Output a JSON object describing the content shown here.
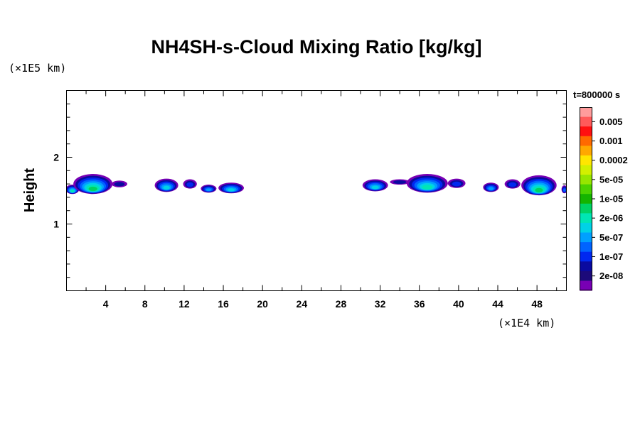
{
  "chart_data": {
    "type": "heatmap",
    "title": "NH4SH-s-Cloud Mixing Ratio [kg/kg]",
    "xlabel": "",
    "ylabel": "Height",
    "x_unit": "(×1E4 km)",
    "y_unit": "(×1E5 km)",
    "time_label": "t=800000 s",
    "xlim": [
      0,
      51
    ],
    "ylim": [
      0,
      3
    ],
    "x_ticks": [
      4,
      8,
      12,
      16,
      20,
      24,
      28,
      32,
      36,
      40,
      44,
      48
    ],
    "y_ticks": [
      1,
      2
    ],
    "colorbar": {
      "levels": [
        "0.005",
        "0.001",
        "0.0002",
        "5e-05",
        "1e-05",
        "2e-06",
        "5e-07",
        "1e-07",
        "2e-08"
      ],
      "colors": [
        "#ff9c9c",
        "#ff5a5a",
        "#ff1010",
        "#ff6a00",
        "#ffa800",
        "#ffe600",
        "#d2f000",
        "#96e600",
        "#4bd200",
        "#14b400",
        "#00d264",
        "#00e6b4",
        "#00d2e6",
        "#00a0ff",
        "#0064ff",
        "#0028f0",
        "#0a0aa0",
        "#1c0a7a",
        "#7800b4"
      ]
    },
    "cloud_patches": [
      {
        "x": 0.6,
        "y": 1.52,
        "w": 1.4,
        "h": 0.14,
        "peak": 7
      },
      {
        "x": 2.7,
        "y": 1.6,
        "w": 4.0,
        "h": 0.3,
        "peak": 8
      },
      {
        "x": 5.4,
        "y": 1.6,
        "w": 1.6,
        "h": 0.1,
        "peak": 2
      },
      {
        "x": 10.2,
        "y": 1.58,
        "w": 2.4,
        "h": 0.2,
        "peak": 6
      },
      {
        "x": 12.6,
        "y": 1.6,
        "w": 1.4,
        "h": 0.14,
        "peak": 3
      },
      {
        "x": 14.5,
        "y": 1.53,
        "w": 1.6,
        "h": 0.12,
        "peak": 5
      },
      {
        "x": 16.8,
        "y": 1.54,
        "w": 2.6,
        "h": 0.16,
        "peak": 6
      },
      {
        "x": 31.5,
        "y": 1.58,
        "w": 2.6,
        "h": 0.18,
        "peak": 6
      },
      {
        "x": 34.0,
        "y": 1.63,
        "w": 2.0,
        "h": 0.08,
        "peak": 2
      },
      {
        "x": 36.8,
        "y": 1.61,
        "w": 4.2,
        "h": 0.28,
        "peak": 7
      },
      {
        "x": 39.8,
        "y": 1.61,
        "w": 1.8,
        "h": 0.14,
        "peak": 3
      },
      {
        "x": 43.3,
        "y": 1.55,
        "w": 1.6,
        "h": 0.14,
        "peak": 5
      },
      {
        "x": 45.5,
        "y": 1.6,
        "w": 1.6,
        "h": 0.14,
        "peak": 3
      },
      {
        "x": 48.2,
        "y": 1.58,
        "w": 3.6,
        "h": 0.3,
        "peak": 8
      },
      {
        "x": 50.8,
        "y": 1.52,
        "w": 0.6,
        "h": 0.12,
        "peak": 4
      }
    ]
  }
}
